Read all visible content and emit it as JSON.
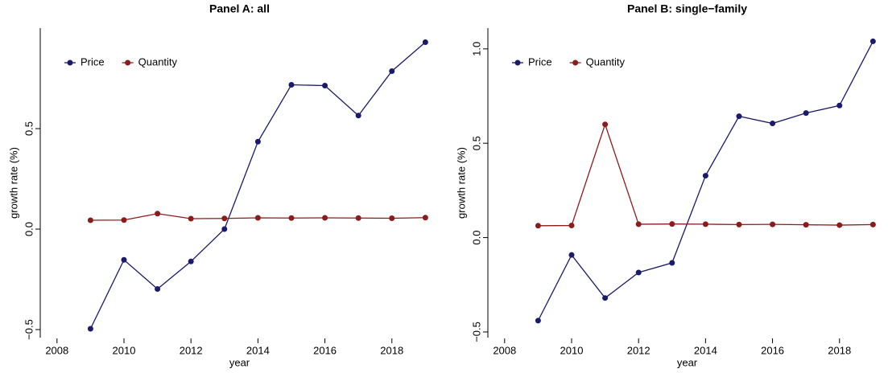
{
  "chart_data": [
    {
      "type": "line",
      "title": "Panel A: all",
      "x_label": "year",
      "y_label": "growth rate (%)",
      "x": [
        2009,
        2010,
        2011,
        2012,
        2013,
        2014,
        2015,
        2016,
        2017,
        2018,
        2019
      ],
      "series": [
        {
          "name": "Price",
          "color": "#1b1b6b",
          "values": [
            -0.496,
            -0.153,
            -0.298,
            -0.161,
            0.0,
            0.435,
            0.718,
            0.714,
            0.565,
            0.786,
            0.93
          ]
        },
        {
          "name": "Quantity",
          "color": "#8b1c1c",
          "values": [
            0.044,
            0.045,
            0.077,
            0.052,
            0.053,
            0.056,
            0.055,
            0.056,
            0.055,
            0.054,
            0.057
          ]
        }
      ],
      "xlim": [
        2007.5,
        2019.4
      ],
      "xticks": [
        2008,
        2010,
        2012,
        2014,
        2016,
        2018
      ],
      "ylim": [
        -0.54,
        1.0
      ],
      "yticks": [
        {
          "value": -0.5,
          "label": "−0.5"
        },
        {
          "value": 0,
          "label": "0.0"
        },
        0.5
      ],
      "legend": "top-left"
    },
    {
      "type": "line",
      "title": "Panel B: single−family",
      "x_label": "year",
      "y_label": "growth rate (%)",
      "x": [
        2009,
        2010,
        2011,
        2012,
        2013,
        2014,
        2015,
        2016,
        2017,
        2018,
        2019
      ],
      "series": [
        {
          "name": "Price",
          "color": "#1b1b6b",
          "values": [
            -0.44,
            -0.092,
            -0.32,
            -0.185,
            -0.134,
            0.328,
            0.643,
            0.605,
            0.66,
            0.7,
            1.04
          ]
        },
        {
          "name": "Quantity",
          "color": "#8b1c1c",
          "values": [
            0.063,
            0.064,
            0.6,
            0.071,
            0.072,
            0.071,
            0.069,
            0.07,
            0.068,
            0.066,
            0.069
          ]
        }
      ],
      "xlim": [
        2007.5,
        2019.4
      ],
      "xticks": [
        2008,
        2010,
        2012,
        2014,
        2016,
        2018
      ],
      "ylim": [
        -0.53,
        1.11
      ],
      "yticks": [
        {
          "value": -0.5,
          "label": "−0.5"
        },
        {
          "value": 0,
          "label": "0.0"
        },
        0.5,
        {
          "value": 1,
          "label": "1.0"
        }
      ],
      "legend": "top-left"
    }
  ]
}
